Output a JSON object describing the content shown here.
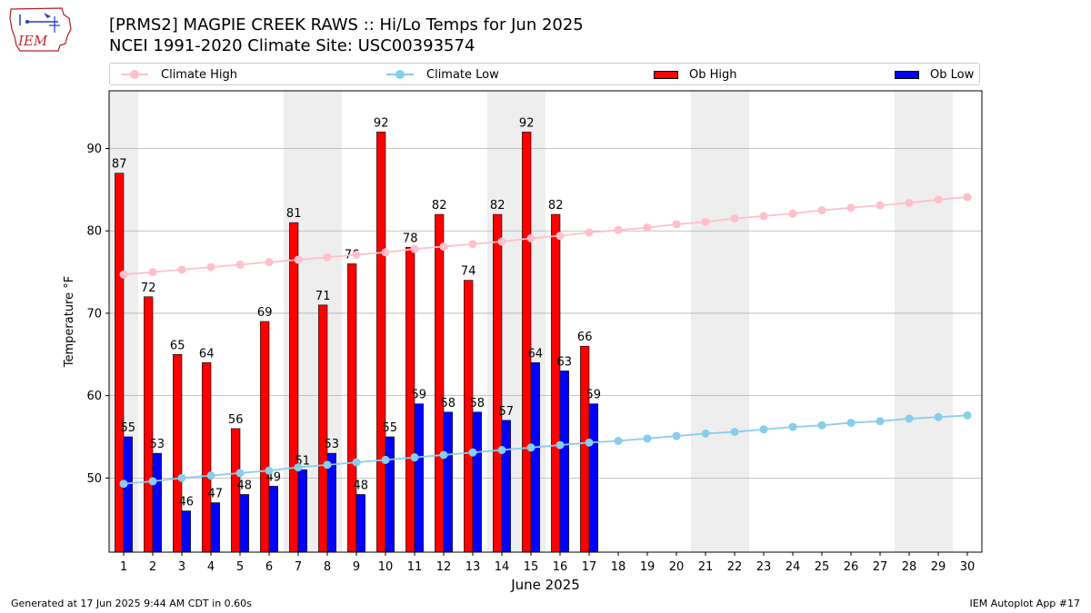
{
  "header": {
    "title_line1": "[PRMS2] MAGPIE CREEK RAWS :: Hi/Lo Temps for Jun 2025",
    "title_line2": "NCEI 1991-2020 Climate Site: USC00393574",
    "logo_text": "IEM"
  },
  "legend": {
    "climate_high": "Climate High",
    "climate_low": "Climate Low",
    "ob_high": "Ob High",
    "ob_low": "Ob Low"
  },
  "footer": {
    "generated": "Generated at 17 Jun 2025 9:44 AM CDT in 0.60s",
    "app": "IEM Autoplot App #17"
  },
  "colors": {
    "ob_high": "#ff0000",
    "ob_low": "#0000ff",
    "climate_high": "#ffc0cb",
    "climate_low": "#87ceeb",
    "weekend_shade": "#eeeeee",
    "grid": "#b0b0b0"
  },
  "chart_data": {
    "type": "bar",
    "xlabel": "June 2025",
    "ylabel": "Temperature °F",
    "ylim": [
      41,
      97
    ],
    "yticks": [
      50,
      60,
      70,
      80,
      90
    ],
    "xlim": [
      0.5,
      30.5
    ],
    "grid": "horizontal",
    "legend_position": "top",
    "days": [
      1,
      2,
      3,
      4,
      5,
      6,
      7,
      8,
      9,
      10,
      11,
      12,
      13,
      14,
      15,
      16,
      17,
      18,
      19,
      20,
      21,
      22,
      23,
      24,
      25,
      26,
      27,
      28,
      29,
      30
    ],
    "shaded_days": [
      1,
      7,
      8,
      14,
      15,
      21,
      22,
      28,
      29
    ],
    "series": [
      {
        "name": "Ob High",
        "kind": "bar",
        "values": [
          87,
          72,
          65,
          64,
          56,
          69,
          81,
          71,
          76,
          92,
          78,
          82,
          74,
          82,
          92,
          82,
          66
        ]
      },
      {
        "name": "Ob Low",
        "kind": "bar",
        "values": [
          55,
          53,
          46,
          47,
          48,
          49,
          51,
          53,
          48,
          55,
          59,
          58,
          58,
          57,
          64,
          63,
          59
        ]
      },
      {
        "name": "Climate High",
        "kind": "line",
        "values": [
          74.7,
          75.0,
          75.3,
          75.6,
          75.9,
          76.2,
          76.5,
          76.8,
          77.1,
          77.4,
          77.8,
          78.1,
          78.4,
          78.7,
          79.1,
          79.4,
          79.8,
          80.1,
          80.4,
          80.8,
          81.1,
          81.5,
          81.8,
          82.1,
          82.5,
          82.8,
          83.1,
          83.4,
          83.8,
          84.1
        ]
      },
      {
        "name": "Climate Low",
        "kind": "line",
        "values": [
          49.3,
          49.6,
          50.0,
          50.3,
          50.6,
          50.9,
          51.3,
          51.6,
          51.9,
          52.2,
          52.5,
          52.8,
          53.1,
          53.4,
          53.7,
          54.0,
          54.3,
          54.5,
          54.8,
          55.1,
          55.4,
          55.6,
          55.9,
          56.2,
          56.4,
          56.7,
          56.9,
          57.2,
          57.4,
          57.6
        ]
      }
    ]
  }
}
